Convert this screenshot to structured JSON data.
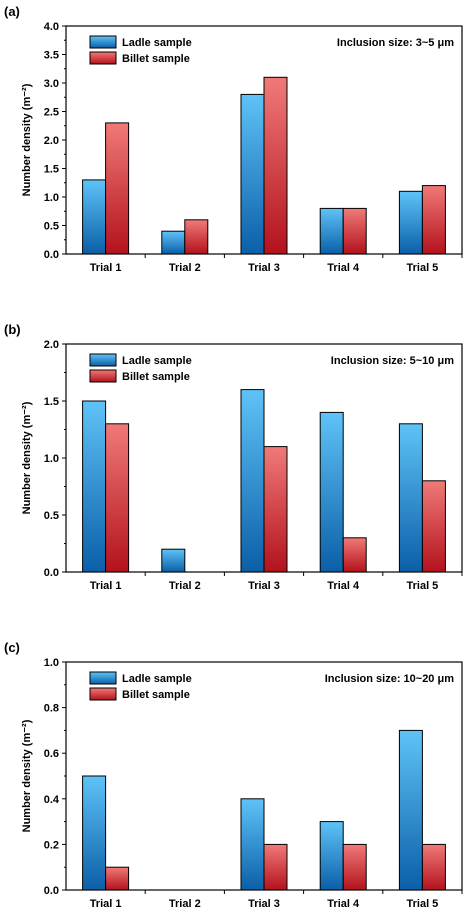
{
  "chart_data": [
    {
      "type": "bar",
      "panel_label": "(a)",
      "annotation": "Inclusion size: 3~5 μm",
      "ylabel": "Number density (m⁻²)",
      "categories": [
        "Trial 1",
        "Trial 2",
        "Trial 3",
        "Trial 4",
        "Trial 5"
      ],
      "ylim": [
        0,
        4.0
      ],
      "yticks": [
        0.0,
        0.5,
        1.0,
        1.5,
        2.0,
        2.5,
        3.0,
        3.5,
        4.0
      ],
      "ytick_labels": [
        "0.0",
        "0.5",
        "1.0",
        "1.5",
        "2.0",
        "2.5",
        "3.0",
        "3.5",
        "4.0"
      ],
      "series": [
        {
          "name": "Ladle sample",
          "values": [
            1.3,
            0.4,
            2.8,
            0.8,
            1.1
          ]
        },
        {
          "name": "Billet sample",
          "values": [
            2.3,
            0.6,
            3.1,
            0.8,
            1.2
          ]
        }
      ],
      "legend_position": "top-left"
    },
    {
      "type": "bar",
      "panel_label": "(b)",
      "annotation": "Inclusion size: 5~10 μm",
      "ylabel": "Number density (m⁻²)",
      "categories": [
        "Trial 1",
        "Trial 2",
        "Trial 3",
        "Trial 4",
        "Trial 5"
      ],
      "ylim": [
        0,
        2.0
      ],
      "yticks": [
        0.0,
        0.5,
        1.0,
        1.5,
        2.0
      ],
      "ytick_labels": [
        "0.0",
        "0.5",
        "1.0",
        "1.5",
        "2.0"
      ],
      "series": [
        {
          "name": "Ladle sample",
          "values": [
            1.5,
            0.2,
            1.6,
            1.4,
            1.3
          ]
        },
        {
          "name": "Billet sample",
          "values": [
            1.3,
            0.0,
            1.1,
            0.3,
            0.8
          ]
        }
      ],
      "legend_position": "top-left"
    },
    {
      "type": "bar",
      "panel_label": "(c)",
      "annotation": "Inclusion size: 10~20 μm",
      "ylabel": "Number density (m⁻²)",
      "categories": [
        "Trial 1",
        "Trial 2",
        "Trial 3",
        "Trial 4",
        "Trial 5"
      ],
      "ylim": [
        0,
        1.0
      ],
      "yticks": [
        0.0,
        0.2,
        0.4,
        0.6,
        0.8,
        1.0
      ],
      "ytick_labels": [
        "0.0",
        "0.2",
        "0.4",
        "0.6",
        "0.8",
        "1.0"
      ],
      "series": [
        {
          "name": "Ladle sample",
          "values": [
            0.5,
            0.0,
            0.4,
            0.3,
            0.7
          ]
        },
        {
          "name": "Billet sample",
          "values": [
            0.1,
            0.0,
            0.2,
            0.2,
            0.2
          ]
        }
      ],
      "legend_position": "top-left"
    }
  ],
  "colors": {
    "ladle_top": "#5fc3f7",
    "ladle_bottom": "#0b5fa8",
    "billet_top": "#f07a78",
    "billet_bottom": "#b3121c"
  }
}
